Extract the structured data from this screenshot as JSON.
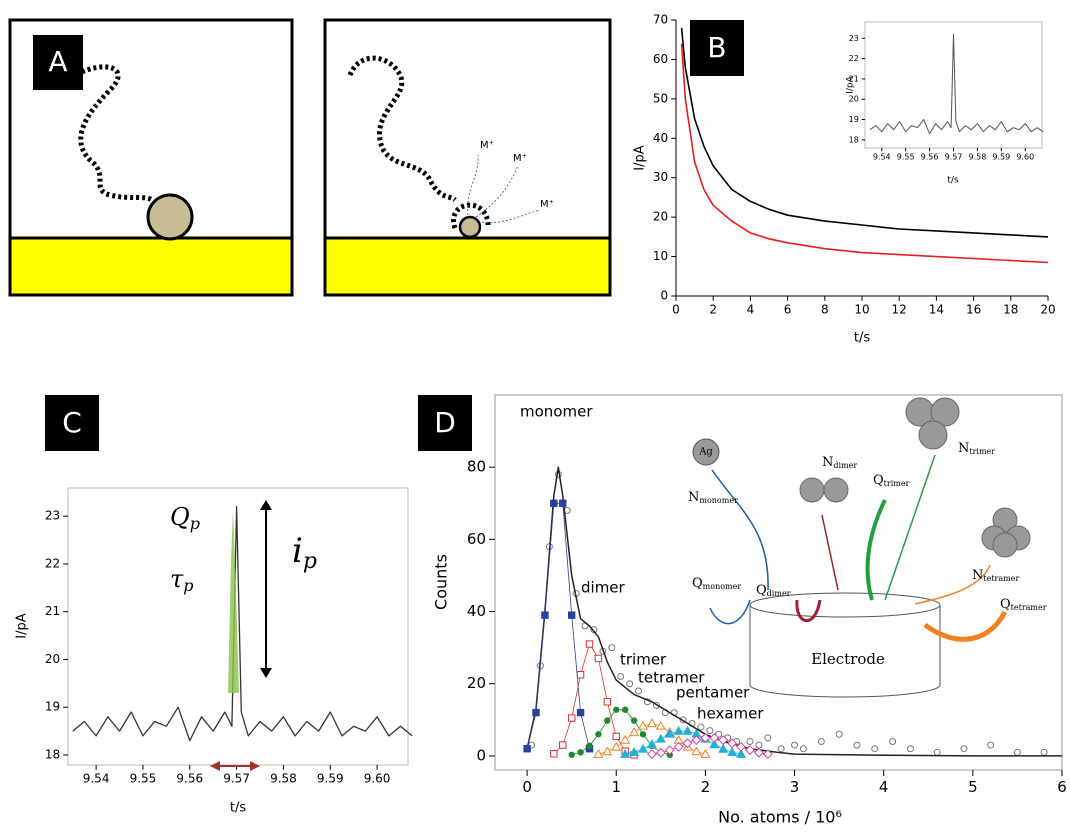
{
  "panel_labels": [
    "A",
    "B",
    "C",
    "D"
  ],
  "diagram_a": {
    "ion_labels": [
      "M⁺",
      "M⁺",
      "M⁺"
    ]
  },
  "diagram_d": {
    "atom": "Ag",
    "n_labels": [
      {
        "main": "N",
        "sub": "monomer"
      },
      {
        "main": "N",
        "sub": "dimer"
      },
      {
        "main": "N",
        "sub": "trimer"
      },
      {
        "main": "N",
        "sub": "tetramer"
      }
    ],
    "q_labels": [
      {
        "main": "Q",
        "sub": "monomer"
      },
      {
        "main": "Q",
        "sub": "dimer"
      },
      {
        "main": "Q",
        "sub": "trimer"
      },
      {
        "main": "Q",
        "sub": "tetramer"
      }
    ],
    "electrode": "Electrode"
  },
  "chart_data": [
    {
      "type": "line",
      "x_label": "t/s",
      "y_label": "I/pA",
      "xlim": [
        0,
        20
      ],
      "ylim": [
        0,
        70
      ],
      "xticks": [
        0,
        2,
        4,
        6,
        8,
        10,
        12,
        14,
        16,
        18,
        20
      ],
      "yticks": [
        0,
        10,
        20,
        30,
        40,
        50,
        60,
        70
      ],
      "x": [
        0.3,
        0.5,
        1,
        1.5,
        2,
        3,
        4,
        5,
        6,
        8,
        10,
        12,
        14,
        16,
        18,
        20
      ],
      "series": [
        {
          "color": "#000000",
          "values": [
            68,
            58,
            45,
            38,
            33,
            27,
            24,
            22,
            20.5,
            19,
            18,
            17,
            16.5,
            16,
            15.5,
            15
          ]
        },
        {
          "color": "#e02020",
          "values": [
            64,
            50,
            34,
            27,
            23,
            19,
            16,
            14.5,
            13.5,
            12,
            11,
            10.5,
            10,
            9.5,
            9,
            8.5
          ]
        }
      ]
    },
    {
      "type": "line",
      "x_label": "t/s",
      "y_label": "I/pA",
      "xlim": [
        9.533,
        9.607
      ],
      "ylim": [
        17.6,
        23.8
      ],
      "xticks": [
        9.54,
        9.55,
        9.56,
        9.57,
        9.58,
        9.59,
        {
          "value": 9.6,
          "label": "9.60"
        }
      ],
      "yticks": [
        18,
        19,
        20,
        21,
        22,
        23
      ],
      "x": [
        9.535,
        9.5375,
        9.54,
        9.5425,
        9.545,
        9.5475,
        9.55,
        9.5525,
        9.555,
        9.5575,
        9.56,
        9.5625,
        9.565,
        9.5675,
        9.569,
        9.57,
        9.571,
        9.5725,
        9.575,
        9.5775,
        9.58,
        9.5825,
        9.585,
        9.5875,
        9.59,
        9.5925,
        9.595,
        9.5975,
        9.6,
        9.6025,
        9.605,
        9.6075
      ],
      "series": [
        {
          "color": "#555555",
          "values": [
            18.5,
            18.7,
            18.4,
            18.8,
            18.5,
            18.9,
            18.4,
            18.7,
            18.6,
            19.0,
            18.3,
            18.8,
            18.5,
            18.9,
            18.6,
            23.2,
            18.9,
            18.4,
            18.7,
            18.5,
            18.8,
            18.4,
            18.7,
            18.5,
            18.9,
            18.4,
            18.6,
            18.5,
            18.8,
            18.4,
            18.6,
            18.4
          ]
        }
      ]
    },
    {
      "type": "line",
      "x_label": "t/s",
      "y_label": "I/pA",
      "xlim": [
        9.534,
        9.6066
      ],
      "ylim": [
        17.79,
        23.59
      ],
      "xticks": [
        9.54,
        9.55,
        9.56,
        9.57,
        9.58,
        9.59,
        {
          "value": 9.6,
          "label": "9.60"
        }
      ],
      "yticks": [
        18,
        19,
        20,
        21,
        22,
        23
      ],
      "x": [
        9.535,
        9.5375,
        9.54,
        9.5425,
        9.545,
        9.5475,
        9.55,
        9.5525,
        9.555,
        9.5575,
        9.56,
        9.5625,
        9.565,
        9.5675,
        9.569,
        9.57,
        9.571,
        9.5725,
        9.575,
        9.5775,
        9.58,
        9.5825,
        9.585,
        9.5875,
        9.59,
        9.5925,
        9.595,
        9.5975,
        9.6,
        9.6025,
        9.605,
        9.6075
      ],
      "series": [
        {
          "color": "#333333",
          "values": [
            18.5,
            18.7,
            18.4,
            18.8,
            18.5,
            18.9,
            18.4,
            18.7,
            18.6,
            19.0,
            18.3,
            18.8,
            18.5,
            18.9,
            18.6,
            23.2,
            18.9,
            18.4,
            18.7,
            18.5,
            18.8,
            18.4,
            18.7,
            18.5,
            18.9,
            18.4,
            18.6,
            18.5,
            18.8,
            18.4,
            18.6,
            18.4
          ]
        }
      ],
      "annotations": {
        "charge": {
          "main": "Q",
          "sub": "p"
        },
        "duration": {
          "main": "τ",
          "sub": "p"
        },
        "peak_current": {
          "main": "i",
          "sub": "p"
        }
      }
    },
    {
      "type": "scatter",
      "x_label": "No. atoms / 10⁶",
      "y_label": "Counts",
      "xlim": [
        -0.36,
        6.0
      ],
      "ylim": [
        -3.9,
        100
      ],
      "xticks": [
        0,
        1,
        2,
        3,
        4,
        5,
        6
      ],
      "yticks": [
        0,
        20,
        40,
        60,
        80
      ],
      "series": [
        {
          "color": "#777777",
          "marker": "open-circle",
          "line": false,
          "x": [
            0.05,
            0.15,
            0.25,
            0.35,
            0.45,
            0.55,
            0.65,
            0.75,
            0.85,
            0.95,
            1.05,
            1.15,
            1.25,
            1.35,
            1.45,
            1.55,
            1.65,
            1.75,
            1.85,
            1.95,
            2.05,
            2.15,
            2.25,
            2.35,
            2.5,
            2.6,
            2.7,
            2.85,
            3.0,
            3.1,
            3.3,
            3.5,
            3.7,
            3.9,
            4.1,
            4.3,
            4.6,
            4.9,
            5.2,
            5.5,
            5.8
          ],
          "values": [
            3,
            25,
            58,
            78,
            68,
            45,
            36,
            35,
            29,
            30,
            22,
            20,
            18,
            15,
            14,
            12,
            12,
            10,
            9,
            8,
            7,
            6,
            5,
            4,
            4,
            3,
            5,
            2,
            3,
            2,
            4,
            6,
            3,
            2,
            4,
            2,
            1,
            2,
            3,
            1,
            1
          ]
        },
        {
          "color": "#222222",
          "marker": "none",
          "line": true,
          "x": [
            0,
            0.1,
            0.2,
            0.3,
            0.35,
            0.4,
            0.5,
            0.6,
            0.7,
            0.8,
            0.9,
            1.0,
            1.2,
            1.4,
            1.6,
            1.8,
            2.0,
            2.2,
            2.5,
            2.8,
            3.0,
            4,
            5,
            6
          ],
          "values": [
            2,
            13,
            40,
            72,
            80,
            72,
            50,
            38,
            36,
            33,
            26,
            21,
            17,
            15,
            12,
            9,
            6,
            4,
            2,
            1,
            0.5,
            0.2,
            0,
            0
          ]
        },
        {
          "name": "monomer",
          "color": "#2b3fa0",
          "marker": "filled-square",
          "line": true,
          "x": [
            0,
            0.1,
            0.2,
            0.3,
            0.4,
            0.5,
            0.6,
            0.7
          ],
          "values": [
            2,
            12,
            39,
            70,
            70,
            39,
            12,
            2
          ]
        },
        {
          "name": "dimer",
          "color": "#e03030",
          "marker": "open-square",
          "line": true,
          "x": [
            0.3,
            0.4,
            0.5,
            0.6,
            0.7,
            0.8,
            0.9,
            1.0,
            1.1,
            1.2
          ],
          "values": [
            0.6,
            3,
            10.5,
            22.5,
            31,
            27,
            15,
            5.4,
            1.3,
            0.3
          ]
        },
        {
          "name": "trimer",
          "color": "#1a8a2a",
          "marker": "filled-circle",
          "line": true,
          "x": [
            0.5,
            0.6,
            0.7,
            0.8,
            0.9,
            1.0,
            1.1,
            1.2,
            1.3,
            1.4,
            1.5,
            1.6
          ],
          "values": [
            0.3,
            1,
            2.8,
            6,
            9.8,
            12.8,
            12.8,
            9.8,
            6,
            2.8,
            1,
            0.3
          ]
        },
        {
          "name": "tetramer",
          "color": "#f08020",
          "marker": "open-triangle",
          "line": true,
          "x": [
            0.8,
            0.9,
            1.0,
            1.1,
            1.2,
            1.3,
            1.4,
            1.5,
            1.6,
            1.7,
            1.8,
            1.9,
            2.0
          ],
          "values": [
            0.5,
            1.2,
            2.5,
            4.4,
            6.5,
            8.3,
            9,
            8.3,
            6.5,
            4.4,
            2.5,
            1.2,
            0.5
          ]
        },
        {
          "name": "pentamer",
          "color": "#20b0d8",
          "marker": "filled-triangle",
          "line": true,
          "x": [
            1.1,
            1.2,
            1.3,
            1.4,
            1.5,
            1.6,
            1.7,
            1.8,
            1.9,
            2.0,
            2.1,
            2.2,
            2.3,
            2.4
          ],
          "values": [
            0.5,
            1,
            1.9,
            3.2,
            4.7,
            6.1,
            6.9,
            6.9,
            6.1,
            4.7,
            3.2,
            1.9,
            1,
            0.5
          ]
        },
        {
          "name": "hexamer",
          "color": "#d040a0",
          "marker": "open-diamond",
          "line": true,
          "x": [
            1.4,
            1.5,
            1.6,
            1.7,
            1.8,
            1.9,
            2.0,
            2.1,
            2.2,
            2.3,
            2.4,
            2.5,
            2.6,
            2.7
          ],
          "values": [
            0.5,
            0.9,
            1.6,
            2.5,
            3.5,
            4.4,
            5,
            5,
            4.4,
            3.5,
            2.5,
            1.6,
            0.9,
            0.5
          ]
        }
      ]
    }
  ]
}
